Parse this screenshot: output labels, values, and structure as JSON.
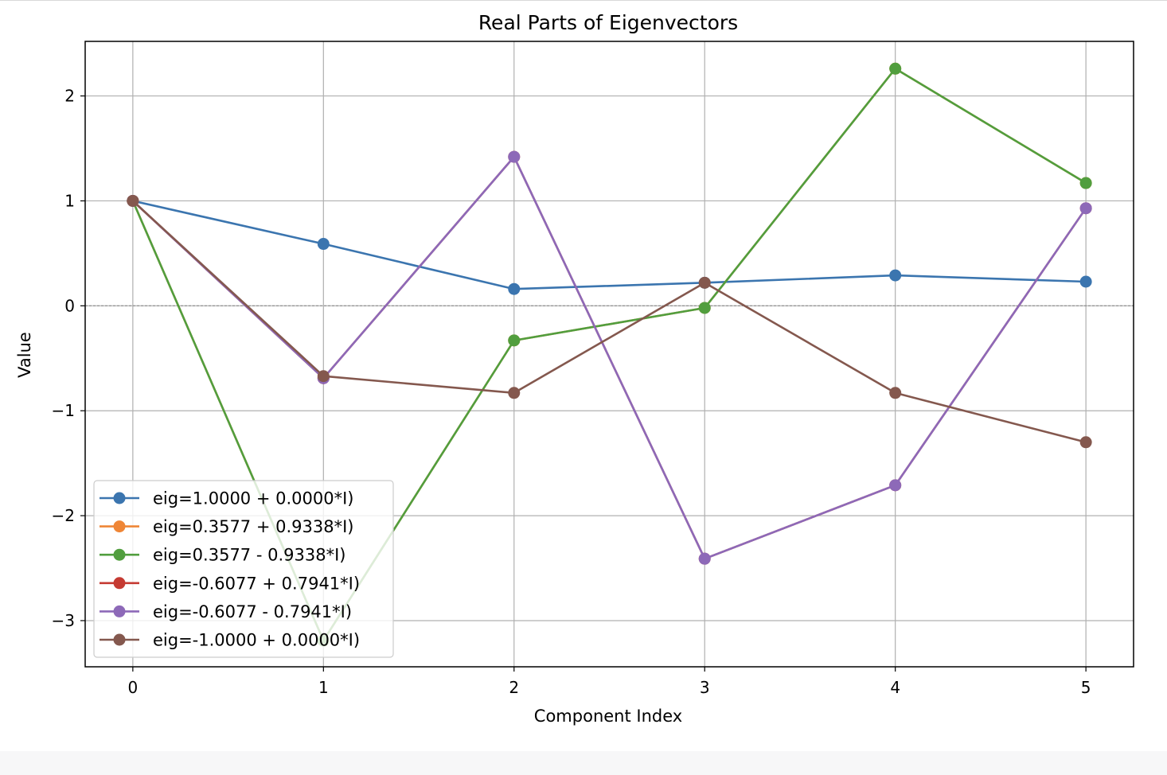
{
  "chart_data": {
    "type": "line",
    "title": "Real Parts of Eigenvectors",
    "xlabel": "Component Index",
    "ylabel": "Value",
    "x": [
      0,
      1,
      2,
      3,
      4,
      5
    ],
    "xticks": [
      "0",
      "1",
      "2",
      "3",
      "4",
      "5"
    ],
    "yticks": [
      {
        "value": -3,
        "label": "−3"
      },
      {
        "value": -2,
        "label": "−2"
      },
      {
        "value": -1,
        "label": "−1"
      },
      {
        "value": 0,
        "label": "0"
      },
      {
        "value": 1,
        "label": "1"
      },
      {
        "value": 2,
        "label": "2"
      }
    ],
    "xlim": [
      -0.25,
      5.25
    ],
    "ylim": [
      -3.44,
      2.52
    ],
    "grid": true,
    "zero_line": true,
    "legend_position": "lower-left",
    "series": [
      {
        "name": "eig=1.0000 + 0.0000*I)",
        "color": "#3b75af",
        "values": [
          1.0,
          0.59,
          0.16,
          0.22,
          0.29,
          0.23
        ]
      },
      {
        "name": "eig=0.3577 + 0.9338*I)",
        "color": "#ef8636",
        "values": [
          1.0,
          -3.19,
          -0.33,
          -0.02,
          2.26,
          1.17
        ]
      },
      {
        "name": "eig=0.3577 - 0.9338*I)",
        "color": "#519e3e",
        "values": [
          1.0,
          -3.19,
          -0.33,
          -0.02,
          2.26,
          1.17
        ]
      },
      {
        "name": "eig=-0.6077 + 0.7941*I)",
        "color": "#c53a32",
        "values": [
          1.0,
          -0.69,
          1.42,
          -2.41,
          -1.71,
          0.93
        ]
      },
      {
        "name": "eig=-0.6077 - 0.7941*I)",
        "color": "#8d69b8",
        "values": [
          1.0,
          -0.69,
          1.42,
          -2.41,
          -1.71,
          0.93
        ]
      },
      {
        "name": "eig=-1.0000 + 0.0000*I)",
        "color": "#84584e",
        "values": [
          1.0,
          -0.67,
          -0.83,
          0.22,
          -0.83,
          -1.3
        ]
      }
    ]
  }
}
